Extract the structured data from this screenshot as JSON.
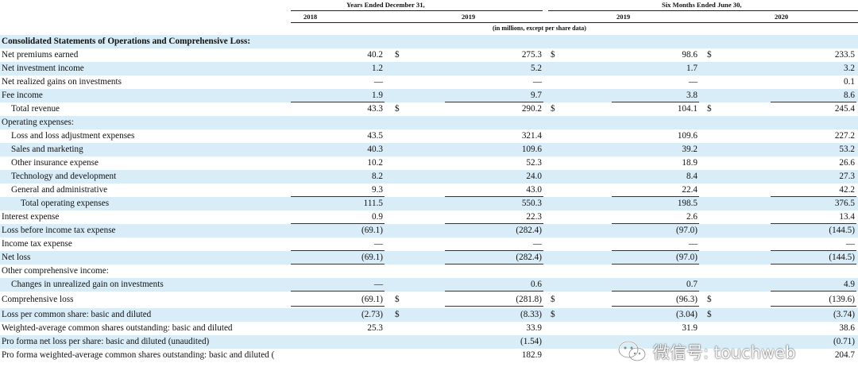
{
  "header": {
    "years_group": "Years Ended December 31,",
    "months_group": "Six Months Ended June 30,",
    "col_2018": "2018",
    "col_2019a": "2019",
    "col_2019b": "2019",
    "col_2020": "2020",
    "units_note": "(in millions, except per share data)"
  },
  "rows": [
    {
      "label": "Consolidated Statements of Operations and Comprehensive Loss:",
      "indent": 0,
      "bold": true,
      "shade": true,
      "v": [
        "",
        "",
        "",
        ""
      ],
      "d": [
        "",
        "",
        ""
      ]
    },
    {
      "label": "Net premiums earned",
      "indent": 0,
      "shade": false,
      "v": [
        "40.2",
        "275.3",
        "98.6",
        "233.5"
      ],
      "d": [
        "$",
        "$",
        "$"
      ]
    },
    {
      "label": "Net investment income",
      "indent": 0,
      "shade": true,
      "v": [
        "1.2",
        "5.2",
        "1.7",
        "3.2"
      ],
      "d": [
        "",
        "",
        ""
      ]
    },
    {
      "label": "Net realized gains on investments",
      "indent": 0,
      "shade": false,
      "v": [
        "—",
        "—",
        "—",
        "0.1"
      ],
      "d": [
        "",
        "",
        ""
      ]
    },
    {
      "label": "Fee income",
      "indent": 0,
      "shade": true,
      "v": [
        "1.9",
        "9.7",
        "3.8",
        "8.6"
      ],
      "d": [
        "",
        "",
        ""
      ],
      "ul": true
    },
    {
      "label": "Total revenue",
      "indent": 1,
      "shade": false,
      "v": [
        "43.3",
        "290.2",
        "104.1",
        "245.4"
      ],
      "d": [
        "$",
        "$",
        "$"
      ]
    },
    {
      "label": "Operating expenses:",
      "indent": 0,
      "shade": true,
      "v": [
        "",
        "",
        "",
        ""
      ],
      "d": [
        "",
        "",
        ""
      ]
    },
    {
      "label": "Loss and loss adjustment expenses",
      "indent": 1,
      "shade": false,
      "v": [
        "43.5",
        "321.4",
        "109.6",
        "227.2"
      ],
      "d": [
        "",
        "",
        ""
      ]
    },
    {
      "label": "Sales and marketing",
      "indent": 1,
      "shade": true,
      "v": [
        "40.3",
        "109.6",
        "39.2",
        "53.2"
      ],
      "d": [
        "",
        "",
        ""
      ]
    },
    {
      "label": "Other insurance expense",
      "indent": 1,
      "shade": false,
      "v": [
        "10.2",
        "52.3",
        "18.9",
        "26.6"
      ],
      "d": [
        "",
        "",
        ""
      ]
    },
    {
      "label": "Technology and development",
      "indent": 1,
      "shade": true,
      "v": [
        "8.2",
        "24.0",
        "8.4",
        "27.3"
      ],
      "d": [
        "",
        "",
        ""
      ]
    },
    {
      "label": "General and administrative",
      "indent": 1,
      "shade": false,
      "v": [
        "9.3",
        "43.0",
        "22.4",
        "42.2"
      ],
      "d": [
        "",
        "",
        ""
      ],
      "ul": true
    },
    {
      "label": "Total operating expenses",
      "indent": 2,
      "shade": true,
      "v": [
        "111.5",
        "550.3",
        "198.5",
        "376.5"
      ],
      "d": [
        "",
        "",
        ""
      ]
    },
    {
      "label": "Interest expense",
      "indent": 0,
      "shade": false,
      "v": [
        "0.9",
        "22.3",
        "2.6",
        "13.4"
      ],
      "d": [
        "",
        "",
        ""
      ],
      "ul": true
    },
    {
      "label": "Loss before income tax expense",
      "indent": 0,
      "shade": true,
      "v": [
        "(69.1)",
        "(282.4)",
        "(97.0)",
        "(144.5)"
      ],
      "d": [
        "",
        "",
        ""
      ]
    },
    {
      "label": "Income tax expense",
      "indent": 0,
      "shade": false,
      "v": [
        "—",
        "—",
        "—",
        "—"
      ],
      "d": [
        "",
        "",
        ""
      ],
      "ul": true
    },
    {
      "label": "Net loss",
      "indent": 0,
      "shade": true,
      "v": [
        "(69.1)",
        "(282.4)",
        "(97.0)",
        "(144.5)"
      ],
      "d": [
        "",
        "",
        ""
      ],
      "ul": true
    },
    {
      "label": "Other comprehensive income:",
      "indent": 0,
      "shade": false,
      "v": [
        "",
        "",
        "",
        ""
      ],
      "d": [
        "",
        "",
        ""
      ]
    },
    {
      "label": "Changes in unrealized gain on investments",
      "indent": 1,
      "shade": true,
      "v": [
        "—",
        "0.6",
        "0.7",
        "4.9"
      ],
      "d": [
        "",
        "",
        ""
      ],
      "ul": true
    },
    {
      "label": "Comprehensive loss",
      "indent": 0,
      "shade": false,
      "v": [
        "(69.1)",
        "(281.8)",
        "(96.3)",
        "(139.6)"
      ],
      "d": [
        "$",
        "$",
        "$"
      ],
      "ul": true
    },
    {
      "label": "Loss per common share: basic and diluted",
      "indent": 0,
      "shade": true,
      "v": [
        "(2.73)",
        "(8.33)",
        "(3.04)",
        "(3.74)"
      ],
      "d": [
        "$",
        "$",
        "$"
      ]
    },
    {
      "label": "Weighted-average common shares outstanding: basic and diluted",
      "indent": 0,
      "shade": false,
      "v": [
        "25.3",
        "33.9",
        "31.9",
        "38.6"
      ],
      "d": [
        "",
        "",
        ""
      ]
    },
    {
      "label": "Pro forma net loss per share: basic and diluted (unaudited)",
      "indent": 0,
      "shade": true,
      "v": [
        "",
        "(1.54)",
        "",
        "(0.71)"
      ],
      "d": [
        "",
        "",
        ""
      ]
    },
    {
      "label": "Pro forma weighted-average common shares outstanding: basic and diluted (",
      "indent": 0,
      "shade": false,
      "v": [
        "",
        "182.9",
        "",
        "204.7"
      ],
      "d": [
        "",
        "",
        ""
      ]
    }
  ],
  "watermark": {
    "text": "微信号: touchweb",
    "icon": "wechat-icon"
  }
}
